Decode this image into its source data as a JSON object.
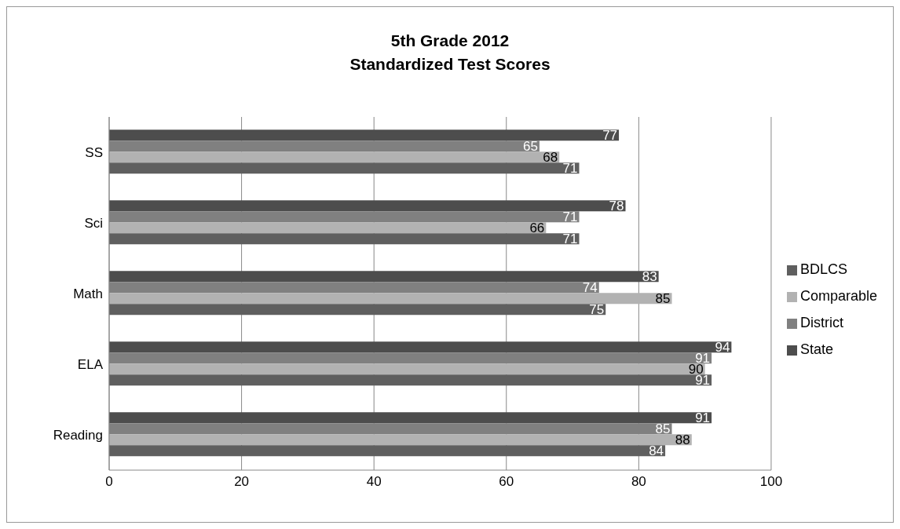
{
  "chart_data": {
    "type": "bar",
    "orientation": "horizontal",
    "title": "5th Grade 2012\nStandardized Test Scores",
    "categories": [
      "SS",
      "Sci",
      "Math",
      "ELA",
      "Reading"
    ],
    "series": [
      {
        "name": "State",
        "color": "#4d4d4d",
        "values": [
          77,
          78,
          83,
          94,
          91
        ]
      },
      {
        "name": "District",
        "color": "#808080",
        "values": [
          65,
          71,
          74,
          91,
          85
        ]
      },
      {
        "name": "Comparable",
        "color": "#b2b2b2",
        "values": [
          68,
          66,
          85,
          90,
          88
        ]
      },
      {
        "name": "BDLCS",
        "color": "#5f5f5f",
        "values": [
          71,
          71,
          75,
          91,
          84
        ]
      }
    ],
    "xlim": [
      0,
      100
    ],
    "xticks": [
      0,
      20,
      40,
      60,
      80,
      100
    ],
    "grid": "x",
    "legend": "right",
    "data_labels": true
  }
}
